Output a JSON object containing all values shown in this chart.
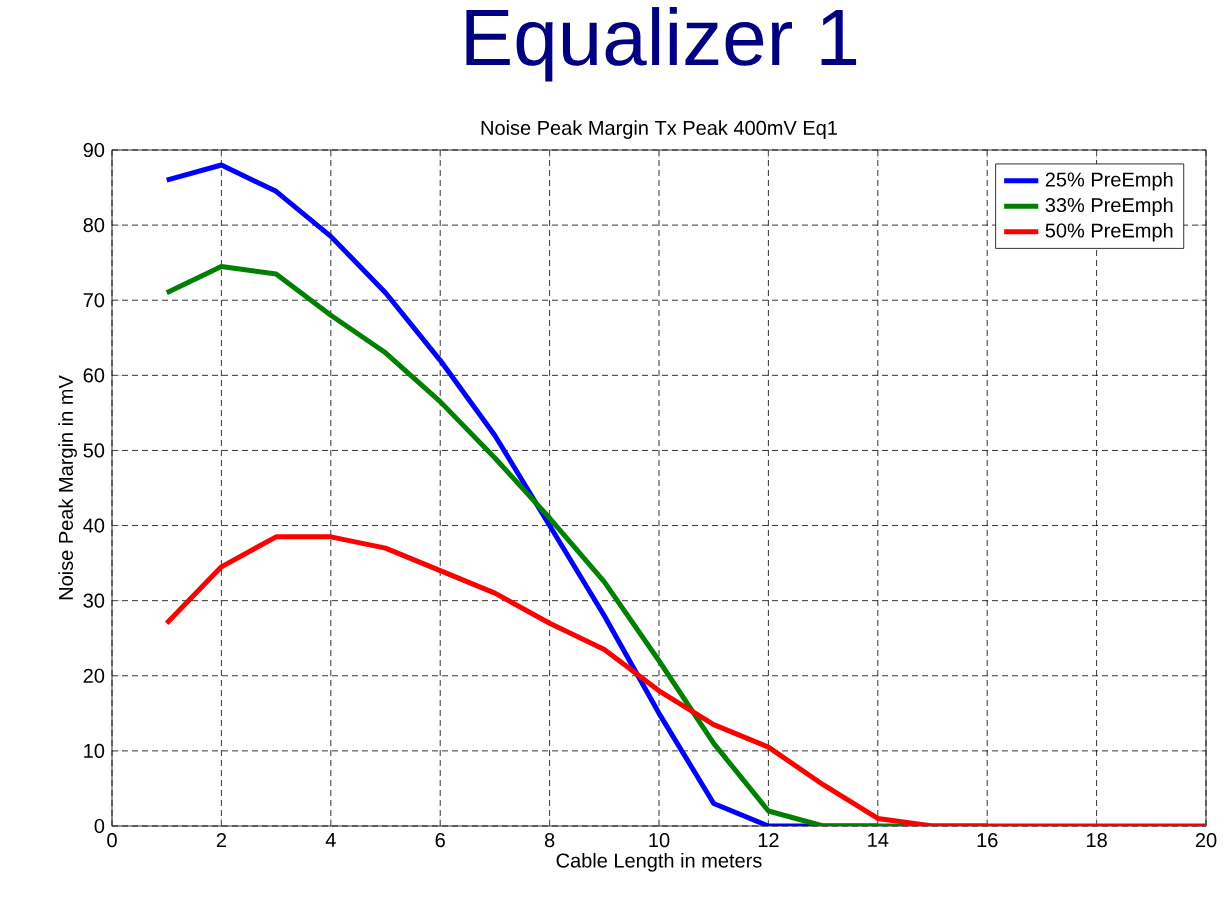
{
  "chart_data": {
    "type": "line",
    "title": "Equalizer 1",
    "subtitle": "Noise Peak Margin Tx Peak 400mV Eq1",
    "xlabel": "Cable Length in meters",
    "ylabel": "Noise Peak Margin in mV",
    "x": [
      1,
      2,
      3,
      4,
      5,
      6,
      7,
      8,
      9,
      10,
      11,
      12,
      13,
      14,
      15,
      16,
      17,
      18,
      19,
      20
    ],
    "series": [
      {
        "name": "25% PreEmph",
        "color": "#0000ff",
        "values": [
          86,
          88,
          84.5,
          78.5,
          71,
          62,
          52,
          40,
          28,
          15,
          3,
          0,
          0,
          0,
          null,
          null,
          null,
          null,
          null,
          null
        ]
      },
      {
        "name": "33% PreEmph",
        "color": "#008000",
        "values": [
          71,
          74.5,
          73.5,
          68,
          63,
          56.5,
          49,
          41,
          32.5,
          22,
          11,
          2,
          0,
          0,
          0,
          0,
          null,
          null,
          null,
          null
        ]
      },
      {
        "name": "50% PreEmph",
        "color": "#ff0000",
        "values": [
          27,
          34.5,
          38.5,
          38.5,
          37,
          34,
          31,
          27,
          23.5,
          18,
          13.5,
          10.5,
          5.5,
          1,
          0,
          0,
          0,
          0,
          0,
          0
        ]
      }
    ],
    "xlim": [
      0,
      20
    ],
    "ylim": [
      0,
      90
    ],
    "xticks": [
      0,
      2,
      4,
      6,
      8,
      10,
      12,
      14,
      16,
      18,
      20
    ],
    "yticks": [
      0,
      10,
      20,
      30,
      40,
      50,
      60,
      70,
      80,
      90
    ],
    "grid": true,
    "legend": "top right",
    "marker": "none",
    "line_style": "solid"
  }
}
